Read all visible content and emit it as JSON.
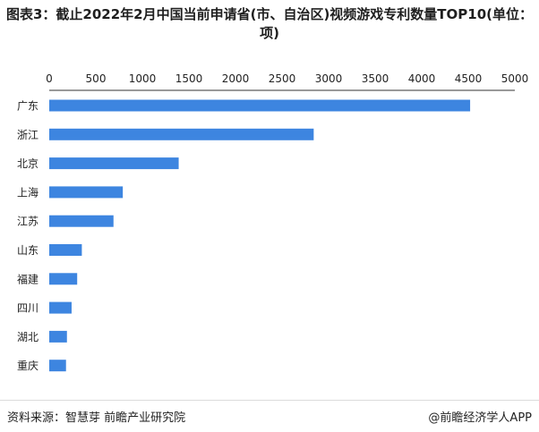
{
  "title": "图表3：截止2022年2月中国当前申请省(市、自治区)视频游戏专利数量TOP10(单位：项)",
  "footer": {
    "source": "资料来源：智慧芽 前瞻产业研究院",
    "brand": "@前瞻经济学人APP"
  },
  "colors": {
    "bar": "#3d85e0",
    "axis": "#333333",
    "text": "#222222"
  },
  "chart_data": {
    "type": "bar",
    "orientation": "horizontal",
    "categories": [
      "广东",
      "浙江",
      "北京",
      "上海",
      "江苏",
      "山东",
      "福建",
      "四川",
      "湖北",
      "重庆"
    ],
    "values": [
      4520,
      2840,
      1390,
      790,
      690,
      350,
      300,
      240,
      190,
      180
    ],
    "xlim": [
      0,
      5000
    ],
    "ticks": [
      0,
      500,
      1000,
      1500,
      2000,
      2500,
      3000,
      3500,
      4000,
      4500,
      5000
    ],
    "tick_labels": [
      "0",
      "500",
      "1000",
      "1500",
      "2000",
      "2500",
      "3000",
      "3500",
      "4000",
      "4500",
      "5000"
    ],
    "x_axis_position": "top",
    "grid": false,
    "legend": "none"
  }
}
